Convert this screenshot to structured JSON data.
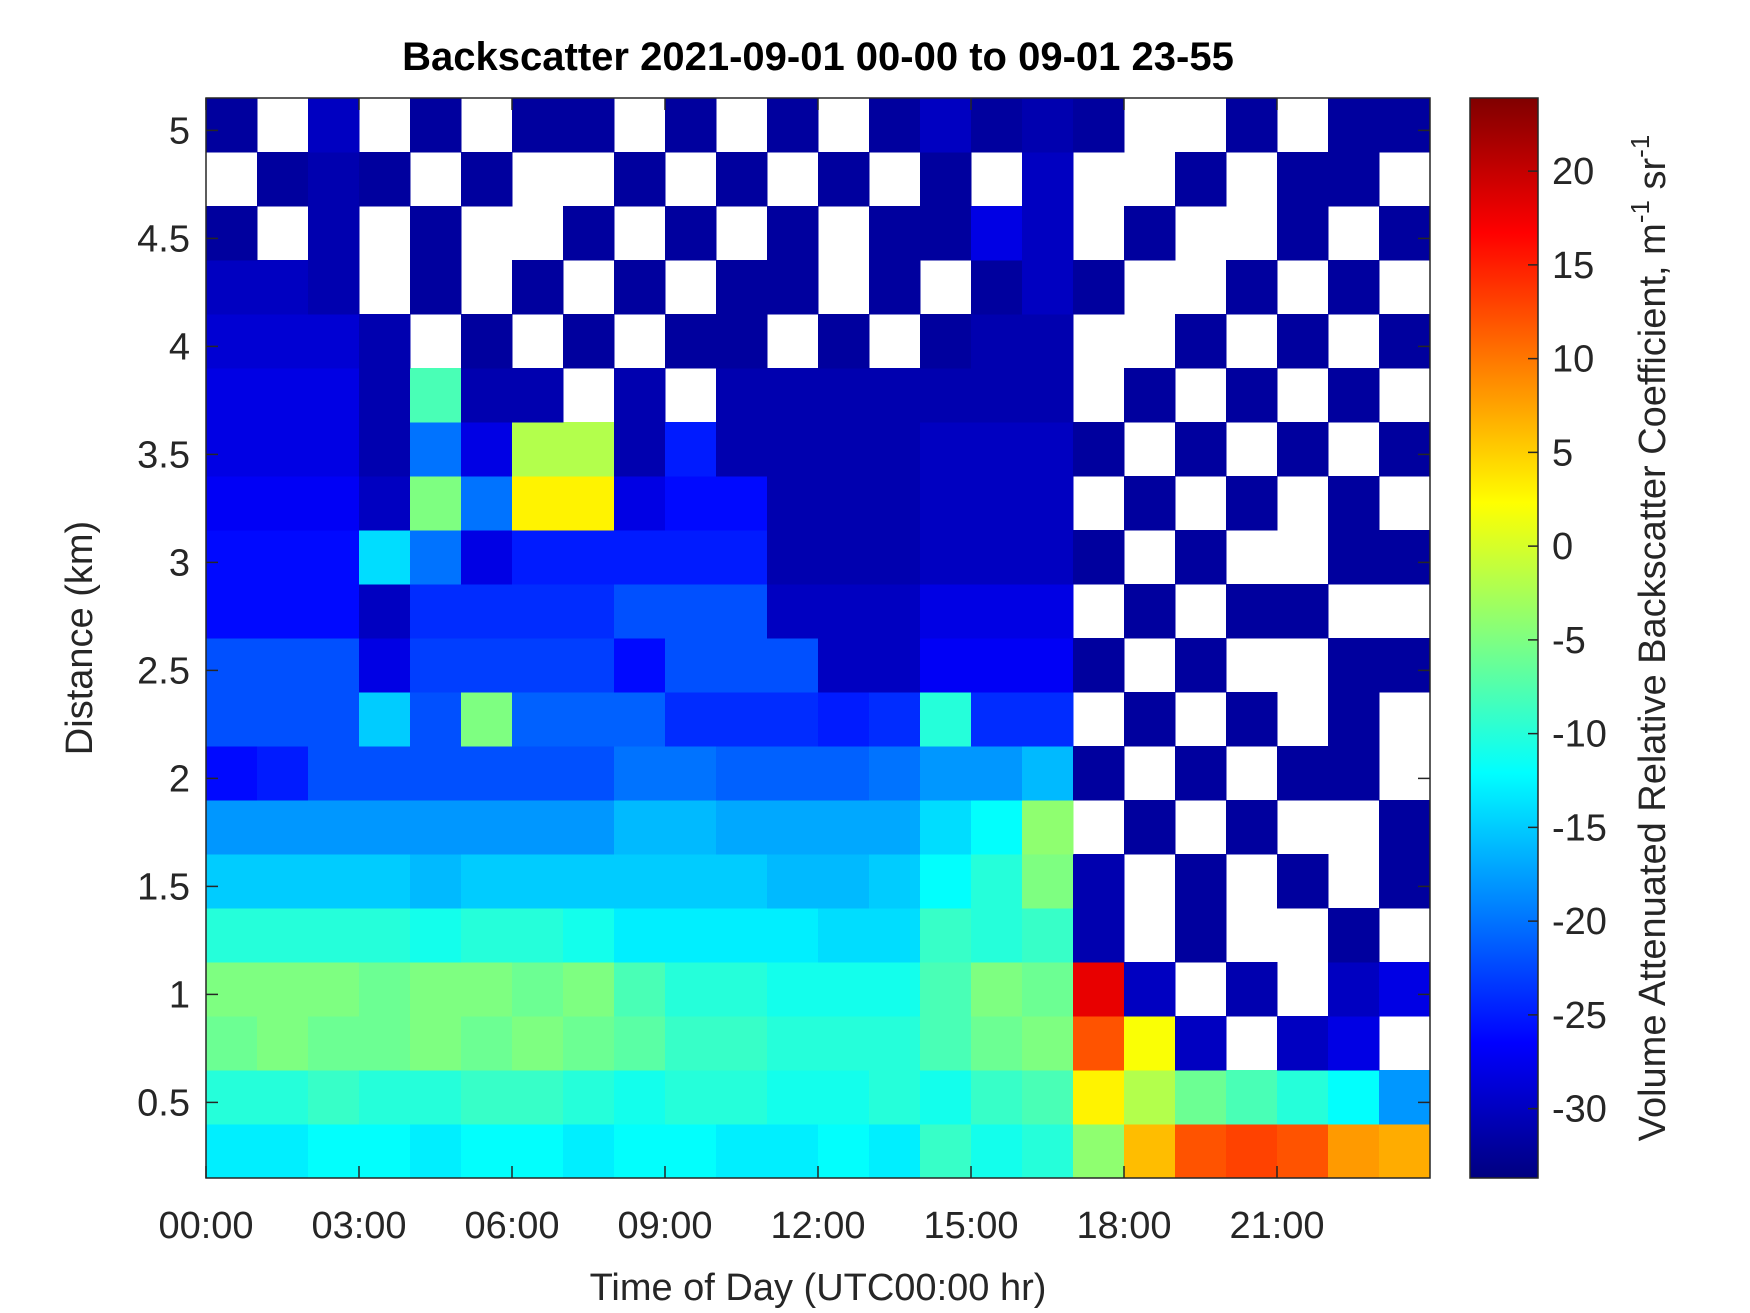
{
  "chart_data": {
    "type": "heatmap",
    "title": "Backscatter 2021-09-01 00-00 to 09-01 23-55",
    "x_label": "Time of Day (UTC00:00 hr)",
    "y_label": "Distance (km)",
    "colorbar_label": [
      "Volume Attenuated Relative Backscatter Coefficient, m",
      "-1",
      " sr",
      "-1"
    ],
    "colormap": "jet",
    "xlim": [
      0,
      24
    ],
    "ylim": [
      0.15,
      5.15
    ],
    "clim": [
      -33.7,
      23.9
    ],
    "xticks": [
      {
        "value": 0,
        "label": "00:00"
      },
      {
        "value": 3,
        "label": "03:00"
      },
      {
        "value": 6,
        "label": "06:00"
      },
      {
        "value": 9,
        "label": "09:00"
      },
      {
        "value": 12,
        "label": "12:00"
      },
      {
        "value": 15,
        "label": "15:00"
      },
      {
        "value": 18,
        "label": "18:00"
      },
      {
        "value": 21,
        "label": "21:00"
      }
    ],
    "yticks": [
      0.5,
      1,
      1.5,
      2,
      2.5,
      3,
      3.5,
      4,
      4.5,
      5
    ],
    "cticks": [
      -30,
      -25,
      -20,
      -15,
      -10,
      -5,
      0,
      5,
      10,
      15,
      20
    ],
    "x": [
      0.5,
      1.5,
      2.5,
      3.5,
      4.5,
      5.5,
      6.5,
      7.5,
      8.5,
      9.5,
      10.5,
      11.5,
      12.5,
      13.5,
      14.5,
      15.5,
      16.5,
      17.5,
      18.5,
      19.5,
      20.5,
      21.5,
      22.5,
      23.5
    ],
    "y": [
      0.275,
      0.525,
      0.775,
      1.025,
      1.275,
      1.525,
      1.775,
      2.025,
      2.275,
      2.525,
      2.775,
      3.025,
      3.275,
      3.525,
      3.775,
      4.025,
      4.275,
      4.525,
      4.775,
      5.025
    ],
    "z": [
      [
        -13,
        -13,
        -12,
        -12,
        -13,
        -12,
        -12,
        -13,
        -12,
        -12,
        -13,
        -13,
        -12,
        -13,
        -9,
        -11,
        -10,
        -4,
        6,
        12,
        13,
        12,
        8,
        7
      ],
      [
        -10,
        -10,
        -9,
        -10,
        -10,
        -9,
        -9,
        -10,
        -11,
        -10,
        -10,
        -11,
        -11,
        -10,
        -11,
        -9,
        -8,
        3,
        -2,
        -6,
        -8,
        -10,
        -12,
        -18
      ],
      [
        -6,
        -5,
        -6,
        -6,
        -5,
        -6,
        -5,
        -6,
        -7,
        -9,
        -9,
        -10,
        -10,
        -10,
        -8,
        -6,
        -5,
        12,
        2,
        -30,
        null,
        -30,
        -28,
        null
      ],
      [
        -5,
        -5,
        -5,
        -6,
        -5,
        -5,
        -6,
        -5,
        -8,
        -10,
        -10,
        -11,
        -11,
        -11,
        -8,
        -5,
        -6,
        18,
        -30,
        null,
        -31,
        null,
        -30,
        -28
      ],
      [
        -10,
        -10,
        -10,
        -10,
        -11,
        -10,
        -10,
        -11,
        -13,
        -13,
        -13,
        -13,
        -14,
        -14,
        -9,
        -10,
        -9,
        -31,
        null,
        -32,
        null,
        null,
        -32,
        null
      ],
      [
        -15,
        -15,
        -15,
        -15,
        -16,
        -15,
        -15,
        -15,
        -15,
        -15,
        -15,
        -16,
        -16,
        -15,
        -12,
        -10,
        -5,
        -31,
        null,
        -32,
        null,
        -32,
        null,
        -32
      ],
      [
        -18,
        -18,
        -18,
        -18,
        -18,
        -18,
        -18,
        -18,
        -16,
        -16,
        -17,
        -17,
        -17,
        -17,
        -14,
        -12,
        -4,
        null,
        -32,
        null,
        -32,
        null,
        null,
        -32
      ],
      [
        -26,
        -25,
        -22,
        -22,
        -22,
        -22,
        -22,
        -22,
        -20,
        -20,
        -21,
        -21,
        -21,
        -20,
        -18,
        -18,
        -16,
        -32,
        null,
        -32,
        null,
        -32,
        -32,
        null
      ],
      [
        -22,
        -22,
        -22,
        -15,
        -22,
        -5,
        -21,
        -21,
        -21,
        -24,
        -24,
        -24,
        -25,
        -24,
        -10,
        -24,
        -24,
        null,
        -32,
        null,
        -32,
        null,
        -32,
        null
      ],
      [
        -22,
        -22,
        -22,
        -28,
        -23,
        -23,
        -23,
        -23,
        -26,
        -22,
        -22,
        -22,
        -30,
        -30,
        -27,
        -27,
        -27,
        -32,
        null,
        -32,
        null,
        null,
        -32,
        -32
      ],
      [
        -26,
        -26,
        -26,
        -30,
        -24,
        -24,
        -24,
        -24,
        -22,
        -22,
        -22,
        -30,
        -30,
        -30,
        -28,
        -28,
        -28,
        null,
        -32,
        null,
        -32,
        -32,
        null,
        null
      ],
      [
        -26,
        -26,
        -26,
        -14,
        -20,
        -28,
        -25,
        -25,
        -25,
        -25,
        -25,
        -31,
        -31,
        -31,
        -30,
        -30,
        -30,
        -32,
        null,
        -32,
        null,
        null,
        -32,
        -32
      ],
      [
        -27,
        -27,
        -27,
        -30,
        -5,
        -20,
        3,
        3,
        -28,
        -26,
        -26,
        -31,
        -31,
        -31,
        -30,
        -30,
        -30,
        null,
        -32,
        null,
        -32,
        null,
        -32,
        null
      ],
      [
        -28,
        -28,
        -28,
        -31,
        -20,
        -28,
        -2,
        -2,
        -31,
        -25,
        -31,
        -31,
        -31,
        -31,
        -30,
        -30,
        -30,
        -32,
        null,
        -32,
        null,
        -32,
        null,
        -32
      ],
      [
        -28,
        -28,
        -28,
        -31,
        -8,
        -31,
        -31,
        null,
        -31,
        null,
        -31,
        -31,
        -31,
        -31,
        -31,
        -31,
        -31,
        null,
        -32,
        null,
        -32,
        null,
        -32,
        null
      ],
      [
        -29,
        -29,
        -29,
        -31,
        null,
        -32,
        null,
        -32,
        null,
        -32,
        -32,
        null,
        -32,
        null,
        -32,
        -31,
        -31,
        null,
        null,
        -32,
        null,
        -32,
        null,
        -32
      ],
      [
        -30,
        -30,
        -31,
        null,
        -32,
        null,
        -32,
        null,
        -32,
        null,
        -32,
        -32,
        null,
        -32,
        null,
        -32,
        -30,
        -32,
        null,
        null,
        -32,
        null,
        -32,
        null
      ],
      [
        -32,
        null,
        -31,
        null,
        -32,
        null,
        null,
        -32,
        null,
        -32,
        null,
        -32,
        null,
        -32,
        -32,
        -28,
        -30,
        null,
        -32,
        null,
        null,
        -32,
        null,
        -32
      ],
      [
        null,
        -32,
        -31,
        -32,
        null,
        -32,
        null,
        null,
        -32,
        null,
        -32,
        null,
        -32,
        null,
        -32,
        null,
        -30,
        null,
        null,
        -32,
        null,
        -32,
        -32,
        null
      ],
      [
        -32,
        null,
        -30,
        null,
        -32,
        null,
        -32,
        -32,
        null,
        -32,
        null,
        -32,
        null,
        -32,
        -30,
        -32,
        -31,
        -32,
        null,
        null,
        -32,
        null,
        -32,
        -32
      ]
    ]
  }
}
